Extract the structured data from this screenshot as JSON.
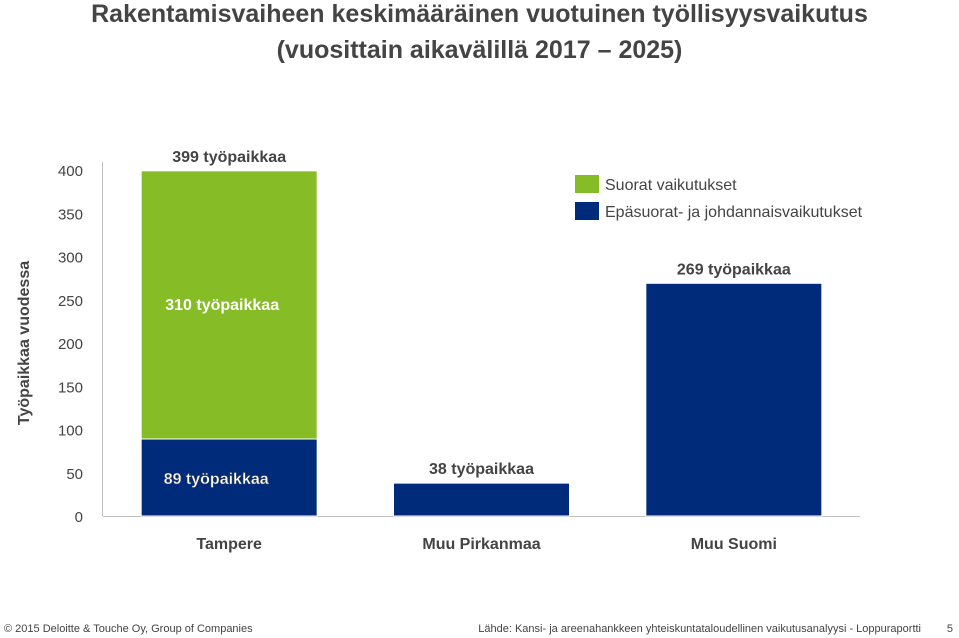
{
  "title": {
    "line1": "Rakentamisvaiheen keskimääräinen vuotuinen työllisyysvaikutus",
    "line2": "(vuosittain aikavälillä 2017 – 2025)"
  },
  "chart_data": {
    "type": "bar",
    "stacked": true,
    "title": "Rakentamisvaiheen keskimääräinen vuotuinen työllisyysvaikutus (vuosittain aikavälillä 2017 – 2025)",
    "ylabel": "Työpaikkaa vuodessa",
    "xlabel": "",
    "ylim": [
      0,
      400
    ],
    "yticks": [
      0,
      50,
      100,
      150,
      200,
      250,
      300,
      350,
      400
    ],
    "categories": [
      "Tampere",
      "Muu Pirkanmaa",
      "Muu Suomi"
    ],
    "series": [
      {
        "name": "Epäsuorat- ja johdannaisvaikutukset",
        "color": "#002b7a",
        "values": [
          89,
          38,
          269
        ]
      },
      {
        "name": "Suorat vaikutukset",
        "color": "#86bc25",
        "values": [
          310,
          0,
          0
        ]
      }
    ],
    "segment_labels": [
      [
        "89 työpaikkaa",
        "38 työpaikkaa",
        "269 työpaikkaa"
      ],
      [
        "310 työpaikkaa",
        "",
        ""
      ]
    ],
    "total_labels": [
      "399 työpaikkaa",
      "",
      ""
    ],
    "legend": {
      "position": "top-right",
      "entries": [
        {
          "label": "Suorat vaikutukset",
          "color": "#86bc25"
        },
        {
          "label": "Epäsuorat- ja johdannaisvaikutukset",
          "color": "#002b7a"
        }
      ]
    }
  },
  "footer": {
    "copyright": "© 2015 Deloitte & Touche Oy, Group of Companies",
    "source": "Lähde: Kansi- ja areenahankkeen yhteiskuntataloudellinen vaikutusanalyysi - Loppuraportti",
    "page_number": "5"
  }
}
